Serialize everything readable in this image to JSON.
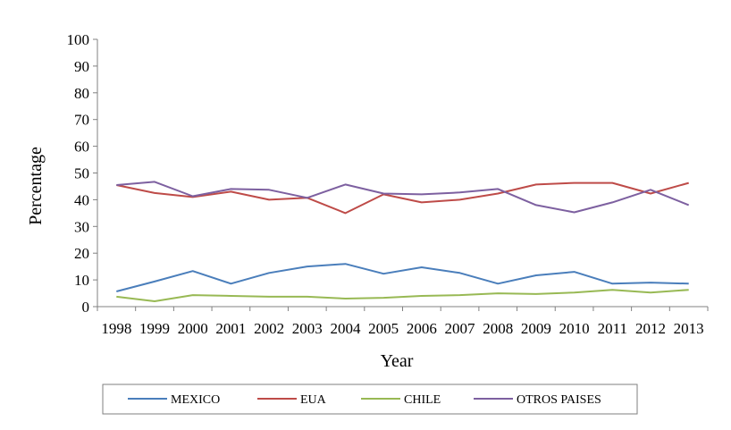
{
  "chart_data": {
    "type": "line",
    "title": "",
    "xlabel": "Year",
    "ylabel": "Percentage",
    "x": [
      "1998",
      "1999",
      "2000",
      "2001",
      "2002",
      "2003",
      "2004",
      "2005",
      "2006",
      "2007",
      "2008",
      "2009",
      "2010",
      "2011",
      "2012",
      "2013"
    ],
    "ylim": [
      0,
      100
    ],
    "yticks": [
      "0",
      "10",
      "20",
      "30",
      "40",
      "50",
      "60",
      "70",
      "80",
      "90",
      "100"
    ],
    "grid": false,
    "legend_position": "bottom",
    "series": [
      {
        "name": "MEXICO",
        "color": "#4a7ebb",
        "values": [
          5.7,
          9.4,
          13.3,
          8.6,
          12.6,
          15.0,
          16.0,
          12.3,
          14.7,
          12.6,
          8.6,
          11.7,
          13.0,
          8.6,
          9.0,
          8.6
        ]
      },
      {
        "name": "EUA",
        "color": "#be4b48",
        "values": [
          45.5,
          42.5,
          41.0,
          43.0,
          40.0,
          40.7,
          35.0,
          42.0,
          39.0,
          40.0,
          42.3,
          45.7,
          46.3,
          46.3,
          42.3,
          46.3
        ]
      },
      {
        "name": "CHILE",
        "color": "#98b954",
        "values": [
          3.7,
          2.0,
          4.3,
          4.0,
          3.7,
          3.7,
          3.0,
          3.3,
          4.0,
          4.3,
          5.0,
          4.7,
          5.3,
          6.3,
          5.3,
          6.3
        ]
      },
      {
        "name": "OTROS PAISES",
        "color": "#7d60a0",
        "values": [
          45.5,
          46.7,
          41.3,
          44.0,
          43.7,
          40.7,
          45.7,
          42.3,
          42.0,
          42.7,
          44.0,
          38.0,
          35.3,
          39.0,
          43.7,
          38.0
        ]
      }
    ]
  }
}
